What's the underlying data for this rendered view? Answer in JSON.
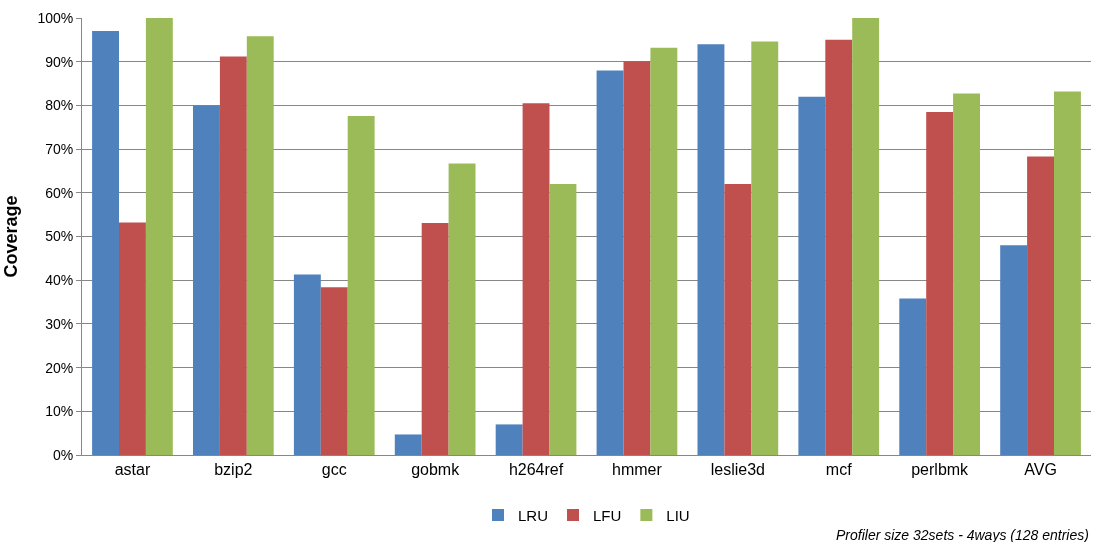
{
  "chart_data": {
    "type": "bar",
    "ylabel": "Coverage",
    "categories": [
      "astar",
      "bzip2",
      "gcc",
      "gobmk",
      "h264ref",
      "hmmer",
      "leslie3d",
      "mcf",
      "perlbmk",
      "AVG"
    ],
    "series": [
      {
        "name": "LRU",
        "color": "#4f81bd",
        "values": [
          97,
          80,
          41.3,
          4.7,
          7,
          88,
          94,
          82,
          35.8,
          48
        ]
      },
      {
        "name": "LFU",
        "color": "#c0504d",
        "values": [
          53.2,
          91.2,
          38.4,
          53.1,
          80.5,
          90.1,
          62,
          95,
          78.5,
          68.3
        ]
      },
      {
        "name": "LIU",
        "color": "#9bbb59",
        "values": [
          100,
          95.8,
          77.6,
          66.7,
          62,
          93.2,
          94.6,
          100,
          82.7,
          83.2
        ]
      }
    ],
    "ylim": [
      0,
      100
    ],
    "yticks": [
      {
        "value": 0,
        "label": "0%"
      },
      {
        "value": 10,
        "label": "10%"
      },
      {
        "value": 20,
        "label": "20%"
      },
      {
        "value": 30,
        "label": "30%"
      },
      {
        "value": 40,
        "label": "40%"
      },
      {
        "value": 50,
        "label": "50%"
      },
      {
        "value": 60,
        "label": "60%"
      },
      {
        "value": 70,
        "label": "70%"
      },
      {
        "value": 80,
        "label": "80%"
      },
      {
        "value": 90,
        "label": "90%"
      },
      {
        "value": 100,
        "label": "100%"
      }
    ],
    "grid": "y",
    "legend": "bottom",
    "annotations": [
      "Profiler size 32sets - 4ways (128 entries)"
    ]
  }
}
